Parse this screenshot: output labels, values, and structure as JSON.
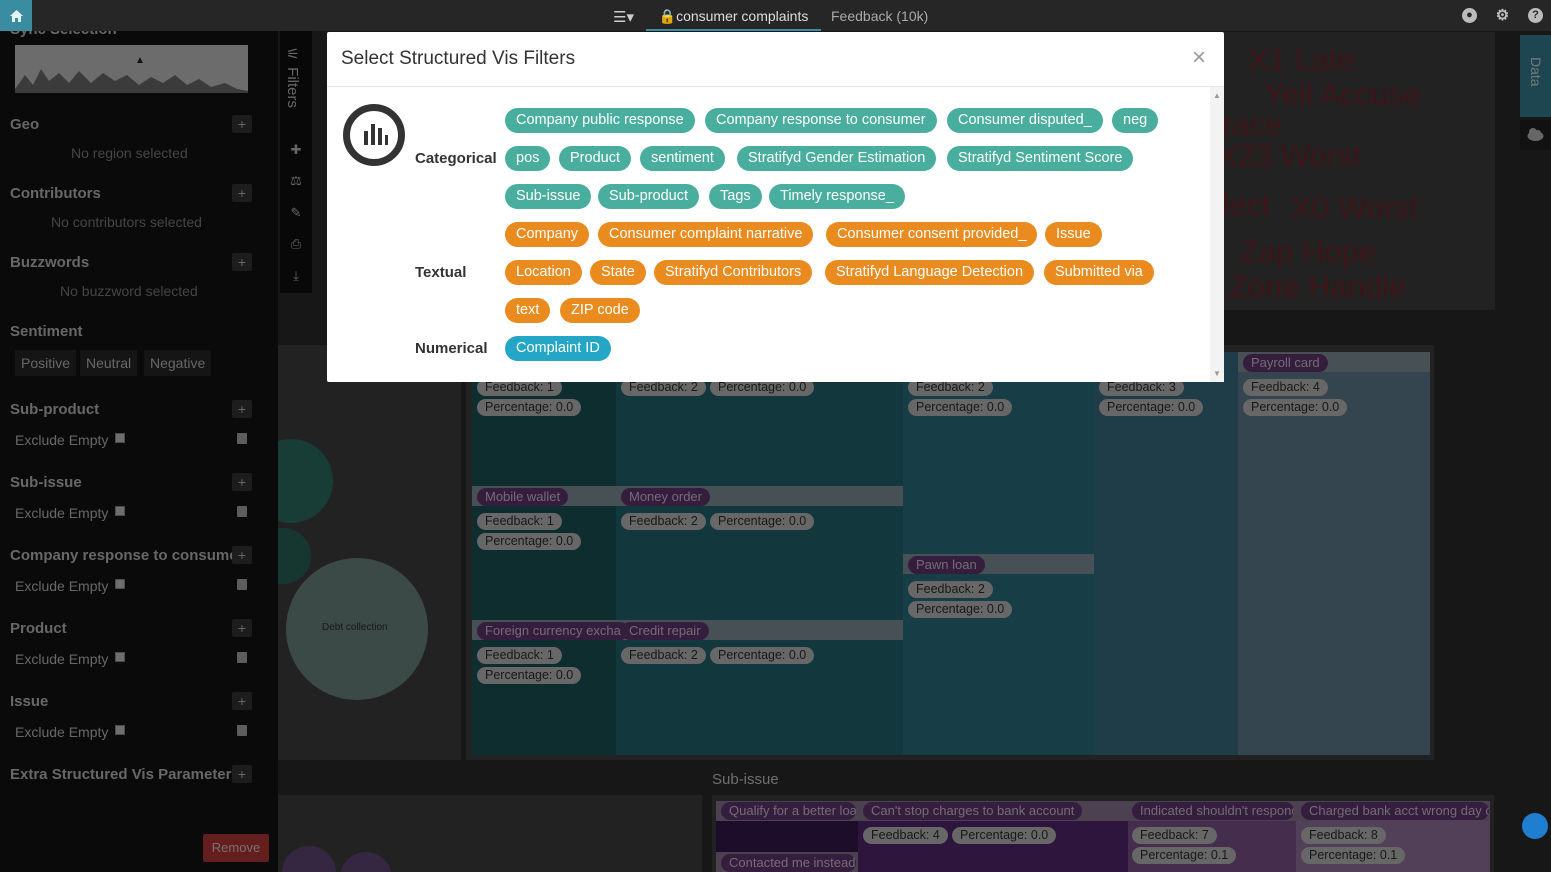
{
  "topbar": {
    "tab_active": "consumer complaints",
    "tab_other": "Feedback (10k)"
  },
  "sidebar": {
    "header_partial": "Sync Selection",
    "geo": {
      "title": "Geo",
      "note": "No region selected"
    },
    "contributors": {
      "title": "Contributors",
      "note": "No contributors selected"
    },
    "buzzwords": {
      "title": "Buzzwords",
      "note": "No buzzword selected"
    },
    "sentiment": {
      "title": "Sentiment",
      "buttons": [
        "Positive",
        "Neutral",
        "Negative"
      ]
    },
    "filters": [
      {
        "title": "Sub-product",
        "exclude": "Exclude Empty"
      },
      {
        "title": "Sub-issue",
        "exclude": "Exclude Empty"
      },
      {
        "title": "Company response to consumer",
        "exclude": "Exclude Empty"
      },
      {
        "title": "Product",
        "exclude": "Exclude Empty"
      },
      {
        "title": "Issue",
        "exclude": "Exclude Empty"
      }
    ],
    "extra": "Extra Structured Vis Parameters",
    "remove": "Remove"
  },
  "toolbar": {
    "filters": "Filters"
  },
  "datatab": {
    "label": "Data"
  },
  "wordcloud": [
    "X1 Late",
    "Yell Accuse",
    "race",
    "X23 Worst",
    "lect",
    "X0 Worst",
    "Zap Hope",
    "Zone Handle"
  ],
  "bubbles": {
    "debt": "Debt collection"
  },
  "treemap": {
    "cells": [
      {
        "name": "",
        "feedback": "Feedback: 1",
        "pct": "Percentage: 0.0"
      },
      {
        "name": "",
        "feedback": "Feedback: 2",
        "pct": "Percentage: 0.0"
      },
      {
        "name": "",
        "feedback": "Feedback: 2",
        "pct": "Percentage: 0.0"
      },
      {
        "name": "",
        "feedback": "Feedback: 3",
        "pct": "Percentage: 0.0"
      },
      {
        "name": "Payroll card",
        "feedback": "Feedback: 4",
        "pct": "Percentage: 0.0"
      },
      {
        "name": "Mobile wallet",
        "feedback": "Feedback: 1",
        "pct": "Percentage: 0.0"
      },
      {
        "name": "Money order",
        "feedback": "Feedback: 2",
        "pct": "Percentage: 0.0"
      },
      {
        "name": "Pawn loan",
        "feedback": "Feedback: 2",
        "pct": "Percentage: 0.0"
      },
      {
        "name": "Foreign currency excha",
        "feedback": "Feedback: 1",
        "pct": "Percentage: 0.0"
      },
      {
        "name": "Credit repair",
        "feedback": "Feedback: 2",
        "pct": "Percentage: 0.0"
      }
    ]
  },
  "subissue": {
    "title": "Sub-issue",
    "cells": [
      {
        "name": "Qualify for a better loa",
        "extra": "Contacted me instead o"
      },
      {
        "name": "Can't stop charges to bank account",
        "feedback": "Feedback: 4",
        "pct": "Percentage: 0.0"
      },
      {
        "name": "Indicated shouldn't respond",
        "feedback": "Feedback: 7",
        "pct": "Percentage: 0.1"
      },
      {
        "name": "Charged bank acct wrong day or",
        "feedback": "Feedback: 8",
        "pct": "Percentage: 0.1"
      }
    ]
  },
  "modal": {
    "title": "Select Structured Vis Filters",
    "close": "×",
    "categorical": {
      "label": "Categorical",
      "chips": [
        "Company public response",
        "Company response to consumer",
        "Consumer disputed_",
        "neg",
        "pos",
        "Product",
        "sentiment",
        "Stratifyd Gender Estimation",
        "Stratifyd Sentiment Score",
        "Sub-issue",
        "Sub-product",
        "Tags",
        "Timely response_"
      ]
    },
    "textual": {
      "label": "Textual",
      "chips": [
        "Company",
        "Consumer complaint narrative",
        "Consumer consent provided_",
        "Issue",
        "Location",
        "State",
        "Stratifyd Contributors",
        "Stratifyd Language Detection",
        "Submitted via",
        "text",
        "ZIP code"
      ]
    },
    "numerical": {
      "label": "Numerical",
      "chips": [
        "Complaint ID"
      ]
    }
  },
  "colors": {
    "accent": "#3a8da0",
    "categorical": "#4aae9f",
    "textual": "#e98b1e",
    "numerical": "#24a6c6",
    "danger": "#c83c3c"
  }
}
